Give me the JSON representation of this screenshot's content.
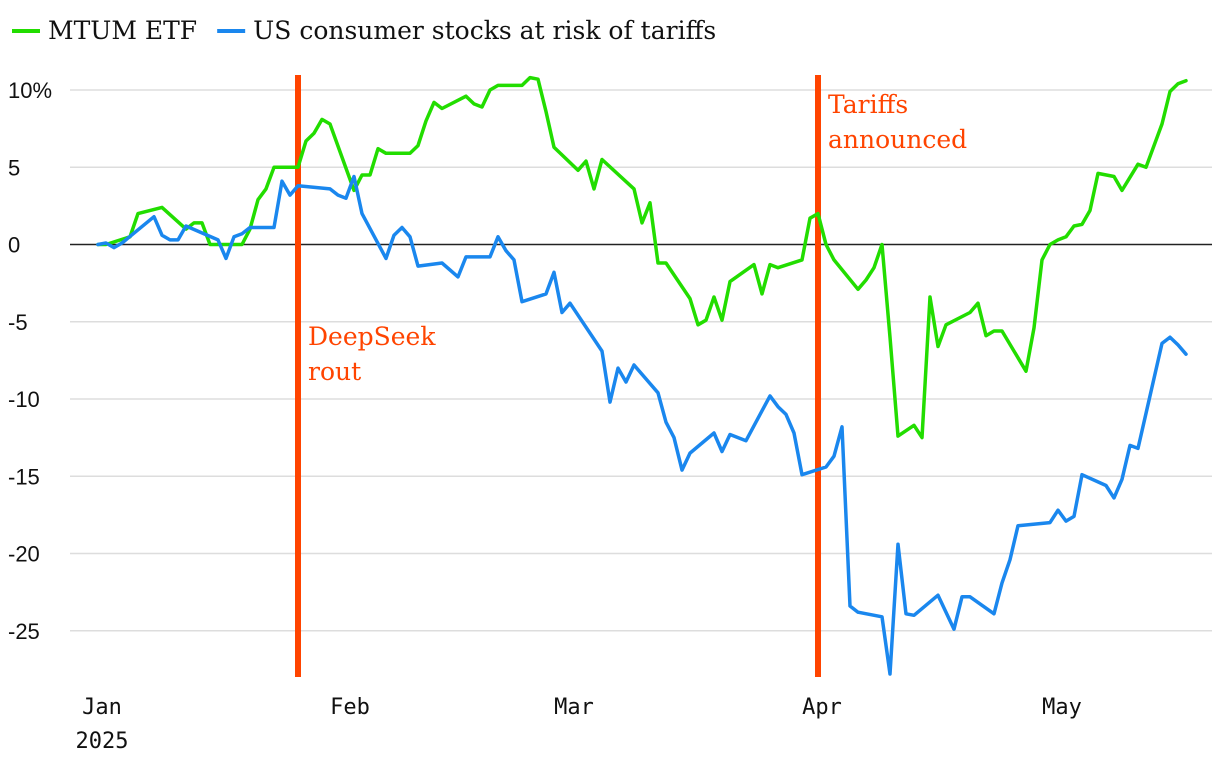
{
  "chart_data": {
    "type": "line",
    "title": "",
    "xlabel": "",
    "ylabel": "",
    "ylim": [
      -28,
      11
    ],
    "yticks": [
      10,
      5,
      0,
      -5,
      -10,
      -15,
      -20,
      -25
    ],
    "ytick_labels": [
      "10%",
      "5",
      "0",
      "-5",
      "-10",
      "-15",
      "-20",
      "-25"
    ],
    "xlim": [
      "2025-01-01",
      "2025-05-16"
    ],
    "xticks": [
      {
        "date": "2025-01-01",
        "label": "Jan",
        "sublabel": "2025"
      },
      {
        "date": "2025-02-01",
        "label": "Feb",
        "sublabel": ""
      },
      {
        "date": "2025-03-01",
        "label": "Mar",
        "sublabel": ""
      },
      {
        "date": "2025-04-01",
        "label": "Apr",
        "sublabel": ""
      },
      {
        "date": "2025-05-01",
        "label": "May",
        "sublabel": ""
      }
    ],
    "grid": true,
    "legend_position": "top-left",
    "series": [
      {
        "name": "MTUM ETF",
        "color": "#22dd00",
        "points": [
          [
            "2025-01-02",
            0.0
          ],
          [
            "2025-01-03",
            0.0
          ],
          [
            "2025-01-06",
            0.5
          ],
          [
            "2025-01-07",
            2.0
          ],
          [
            "2025-01-10",
            2.4
          ],
          [
            "2025-01-13",
            1.0
          ],
          [
            "2025-01-14",
            1.4
          ],
          [
            "2025-01-15",
            1.4
          ],
          [
            "2025-01-16",
            0.0
          ],
          [
            "2025-01-17",
            0.0
          ],
          [
            "2025-01-20",
            0.0
          ],
          [
            "2025-01-21",
            1.0
          ],
          [
            "2025-01-22",
            2.9
          ],
          [
            "2025-01-23",
            3.6
          ],
          [
            "2025-01-24",
            5.0
          ],
          [
            "2025-01-27",
            5.0
          ],
          [
            "2025-01-28",
            6.7
          ],
          [
            "2025-01-29",
            7.2
          ],
          [
            "2025-01-30",
            8.1
          ],
          [
            "2025-01-31",
            7.8
          ],
          [
            "2025-02-03",
            3.5
          ],
          [
            "2025-02-04",
            4.5
          ],
          [
            "2025-02-05",
            4.5
          ],
          [
            "2025-02-06",
            6.2
          ],
          [
            "2025-02-07",
            5.9
          ],
          [
            "2025-02-10",
            5.9
          ],
          [
            "2025-02-11",
            6.4
          ],
          [
            "2025-02-12",
            8.0
          ],
          [
            "2025-02-13",
            9.2
          ],
          [
            "2025-02-14",
            8.8
          ],
          [
            "2025-02-17",
            9.6
          ],
          [
            "2025-02-18",
            9.1
          ],
          [
            "2025-02-19",
            8.9
          ],
          [
            "2025-02-20",
            10.0
          ],
          [
            "2025-02-21",
            10.3
          ],
          [
            "2025-02-24",
            10.3
          ],
          [
            "2025-02-25",
            10.8
          ],
          [
            "2025-02-26",
            10.7
          ],
          [
            "2025-02-27",
            8.6
          ],
          [
            "2025-02-28",
            6.3
          ],
          [
            "2025-03-03",
            4.8
          ],
          [
            "2025-03-04",
            5.4
          ],
          [
            "2025-03-05",
            3.6
          ],
          [
            "2025-03-06",
            5.5
          ],
          [
            "2025-03-10",
            3.6
          ],
          [
            "2025-03-11",
            1.4
          ],
          [
            "2025-03-12",
            2.7
          ],
          [
            "2025-03-13",
            -1.2
          ],
          [
            "2025-03-14",
            -1.2
          ],
          [
            "2025-03-17",
            -3.5
          ],
          [
            "2025-03-18",
            -5.2
          ],
          [
            "2025-03-19",
            -4.9
          ],
          [
            "2025-03-20",
            -3.4
          ],
          [
            "2025-03-21",
            -4.9
          ],
          [
            "2025-03-22",
            -2.4
          ],
          [
            "2025-03-25",
            -1.3
          ],
          [
            "2025-03-26",
            -3.2
          ],
          [
            "2025-03-27",
            -1.3
          ],
          [
            "2025-03-28",
            -1.5
          ],
          [
            "2025-03-31",
            -1.0
          ],
          [
            "2025-04-01",
            1.7
          ],
          [
            "2025-04-02",
            2.0
          ],
          [
            "2025-04-03",
            0.0
          ],
          [
            "2025-04-04",
            -1.0
          ],
          [
            "2025-04-07",
            -2.9
          ],
          [
            "2025-04-08",
            -2.3
          ],
          [
            "2025-04-09",
            -1.5
          ],
          [
            "2025-04-10",
            0.0
          ],
          [
            "2025-04-11",
            -6.0
          ],
          [
            "2025-04-12",
            -12.4
          ],
          [
            "2025-04-14",
            -11.7
          ],
          [
            "2025-04-15",
            -12.5
          ],
          [
            "2025-04-16",
            -3.4
          ],
          [
            "2025-04-17",
            -6.6
          ],
          [
            "2025-04-18",
            -5.2
          ],
          [
            "2025-04-21",
            -4.4
          ],
          [
            "2025-04-22",
            -3.8
          ],
          [
            "2025-04-23",
            -5.9
          ],
          [
            "2025-04-24",
            -5.6
          ],
          [
            "2025-04-25",
            -5.6
          ],
          [
            "2025-04-28",
            -8.2
          ],
          [
            "2025-04-29",
            -5.4
          ],
          [
            "2025-04-30",
            -1.0
          ],
          [
            "2025-05-01",
            0.0
          ],
          [
            "2025-05-02",
            0.3
          ],
          [
            "2025-05-03",
            0.5
          ],
          [
            "2025-05-04",
            1.2
          ],
          [
            "2025-05-05",
            1.3
          ],
          [
            "2025-05-06",
            2.2
          ],
          [
            "2025-05-07",
            4.6
          ],
          [
            "2025-05-09",
            4.4
          ],
          [
            "2025-05-10",
            3.5
          ],
          [
            "2025-05-12",
            5.2
          ],
          [
            "2025-05-13",
            5.0
          ],
          [
            "2025-05-15",
            7.8
          ],
          [
            "2025-05-16",
            9.9
          ],
          [
            "2025-05-17",
            10.4
          ],
          [
            "2025-05-18",
            10.6
          ]
        ]
      },
      {
        "name": "US consumer stocks at risk of tariffs",
        "color": "#1a87ee",
        "points": [
          [
            "2025-01-02",
            0.0
          ],
          [
            "2025-01-03",
            0.1
          ],
          [
            "2025-01-04",
            -0.2
          ],
          [
            "2025-01-05",
            0.1
          ],
          [
            "2025-01-09",
            1.8
          ],
          [
            "2025-01-10",
            0.6
          ],
          [
            "2025-01-11",
            0.3
          ],
          [
            "2025-01-12",
            0.3
          ],
          [
            "2025-01-13",
            1.2
          ],
          [
            "2025-01-17",
            0.3
          ],
          [
            "2025-01-18",
            -0.9
          ],
          [
            "2025-01-19",
            0.5
          ],
          [
            "2025-01-20",
            0.7
          ],
          [
            "2025-01-21",
            1.1
          ],
          [
            "2025-01-23",
            1.1
          ],
          [
            "2025-01-24",
            1.1
          ],
          [
            "2025-01-25",
            4.1
          ],
          [
            "2025-01-26",
            3.2
          ],
          [
            "2025-01-27",
            3.8
          ],
          [
            "2025-01-31",
            3.6
          ],
          [
            "2025-02-01",
            3.2
          ],
          [
            "2025-02-02",
            3.0
          ],
          [
            "2025-02-03",
            4.4
          ],
          [
            "2025-02-04",
            2.0
          ],
          [
            "2025-02-07",
            -0.9
          ],
          [
            "2025-02-08",
            0.6
          ],
          [
            "2025-02-09",
            1.1
          ],
          [
            "2025-02-10",
            0.5
          ],
          [
            "2025-02-11",
            -1.4
          ],
          [
            "2025-02-14",
            -1.2
          ],
          [
            "2025-02-16",
            -2.1
          ],
          [
            "2025-02-17",
            -0.8
          ],
          [
            "2025-02-20",
            -0.8
          ],
          [
            "2025-02-21",
            0.5
          ],
          [
            "2025-02-22",
            -0.4
          ],
          [
            "2025-02-23",
            -1.0
          ],
          [
            "2025-02-24",
            -3.7
          ],
          [
            "2025-02-27",
            -3.2
          ],
          [
            "2025-02-28",
            -1.8
          ],
          [
            "2025-03-01",
            -4.4
          ],
          [
            "2025-03-02",
            -3.8
          ],
          [
            "2025-03-06",
            -6.9
          ],
          [
            "2025-03-07",
            -10.2
          ],
          [
            "2025-03-08",
            -8.0
          ],
          [
            "2025-03-09",
            -8.9
          ],
          [
            "2025-03-10",
            -7.8
          ],
          [
            "2025-03-13",
            -9.6
          ],
          [
            "2025-03-14",
            -11.5
          ],
          [
            "2025-03-15",
            -12.5
          ],
          [
            "2025-03-16",
            -14.6
          ],
          [
            "2025-03-17",
            -13.5
          ],
          [
            "2025-03-20",
            -12.2
          ],
          [
            "2025-03-21",
            -13.4
          ],
          [
            "2025-03-22",
            -12.3
          ],
          [
            "2025-03-24",
            -12.7
          ],
          [
            "2025-03-27",
            -9.8
          ],
          [
            "2025-03-28",
            -10.5
          ],
          [
            "2025-03-29",
            -11.0
          ],
          [
            "2025-03-30",
            -12.2
          ],
          [
            "2025-03-31",
            -14.9
          ],
          [
            "2025-04-03",
            -14.4
          ],
          [
            "2025-04-04",
            -13.7
          ],
          [
            "2025-04-05",
            -11.8
          ],
          [
            "2025-04-06",
            -23.4
          ],
          [
            "2025-04-07",
            -23.8
          ],
          [
            "2025-04-10",
            -24.1
          ],
          [
            "2025-04-11",
            -27.8
          ],
          [
            "2025-04-12",
            -19.4
          ],
          [
            "2025-04-13",
            -23.9
          ],
          [
            "2025-04-14",
            -24.0
          ],
          [
            "2025-04-17",
            -22.7
          ],
          [
            "2025-04-19",
            -24.9
          ],
          [
            "2025-04-20",
            -22.8
          ],
          [
            "2025-04-21",
            -22.8
          ],
          [
            "2025-04-24",
            -23.9
          ],
          [
            "2025-04-25",
            -21.9
          ],
          [
            "2025-04-26",
            -20.4
          ],
          [
            "2025-04-27",
            -18.2
          ],
          [
            "2025-05-01",
            -18.0
          ],
          [
            "2025-05-02",
            -17.2
          ],
          [
            "2025-05-03",
            -17.9
          ],
          [
            "2025-05-04",
            -17.6
          ],
          [
            "2025-05-05",
            -14.9
          ],
          [
            "2025-05-08",
            -15.6
          ],
          [
            "2025-05-09",
            -16.4
          ],
          [
            "2025-05-10",
            -15.2
          ],
          [
            "2025-05-11",
            -13.0
          ],
          [
            "2025-05-12",
            -13.2
          ],
          [
            "2025-05-15",
            -6.4
          ],
          [
            "2025-05-16",
            -6.0
          ],
          [
            "2025-05-17",
            -6.5
          ],
          [
            "2025-05-18",
            -7.1
          ]
        ]
      }
    ],
    "annotations": [
      {
        "date": "2025-01-27",
        "label_lines": [
          "DeepSeek",
          "rout"
        ],
        "color": "#ff4400"
      },
      {
        "date": "2025-04-02",
        "label_lines": [
          "Tariffs",
          "announced"
        ],
        "color": "#ff4400"
      }
    ]
  }
}
